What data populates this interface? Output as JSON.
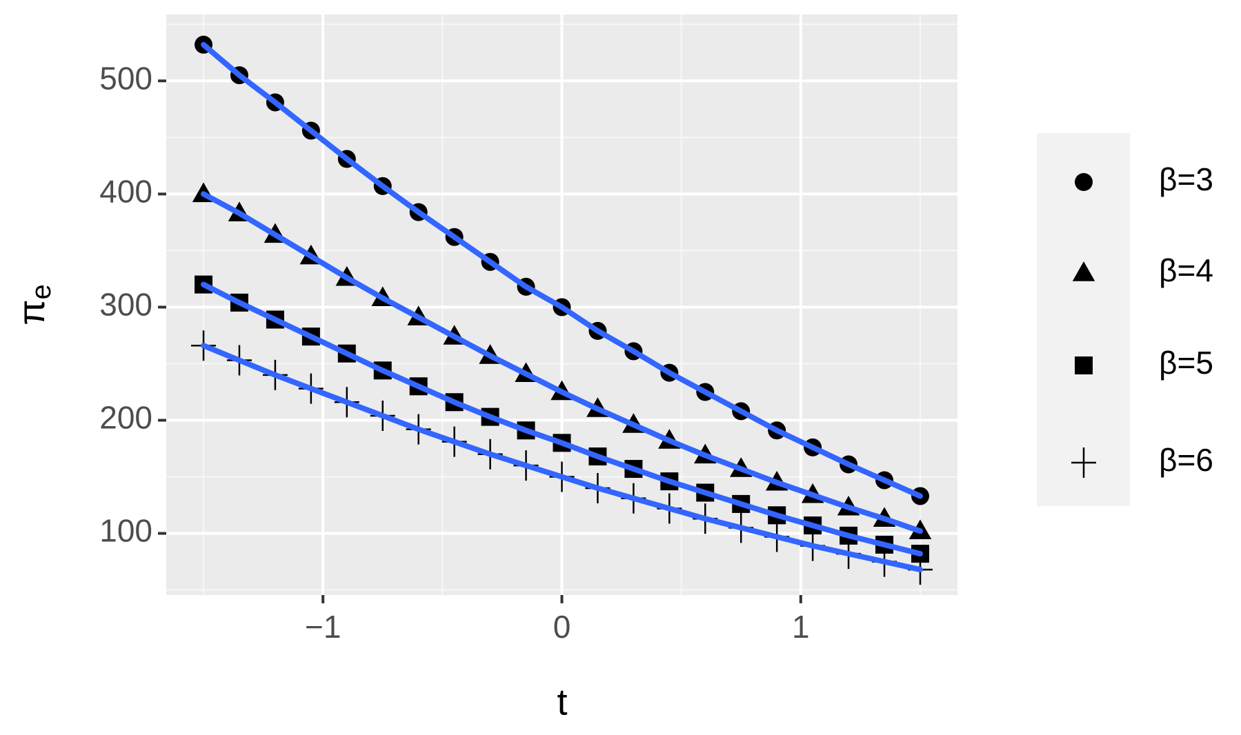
{
  "chart_data": {
    "type": "scatter",
    "xlabel": "t",
    "ylabel": "π",
    "ylabel_sub": "e",
    "x": [
      -1.5,
      -1.35,
      -1.2,
      -1.05,
      -0.9,
      -0.75,
      -0.6,
      -0.45,
      -0.3,
      -0.15,
      0,
      0.15,
      0.3,
      0.45,
      0.6,
      0.75,
      0.9,
      1.05,
      1.2,
      1.35,
      1.5
    ],
    "series": [
      {
        "name": "β=3",
        "shape": "circle",
        "color": "#000000",
        "values": [
          532,
          505,
          481,
          456,
          431,
          407,
          384,
          362,
          340,
          318,
          300,
          279,
          261,
          242,
          225,
          208,
          191,
          176,
          161,
          147,
          133
        ]
      },
      {
        "name": "β=4",
        "shape": "triangle",
        "color": "#000000",
        "values": [
          400,
          383,
          364,
          345,
          326,
          308,
          291,
          274,
          257,
          241,
          225,
          210,
          196,
          182,
          169,
          157,
          145,
          134,
          123,
          113,
          102
        ]
      },
      {
        "name": "β=5",
        "shape": "square",
        "color": "#000000",
        "values": [
          320,
          304,
          289,
          274,
          259,
          244,
          230,
          216,
          203,
          191,
          180,
          168,
          157,
          146,
          136,
          126,
          116,
          107,
          98,
          90,
          82
        ]
      },
      {
        "name": "β=6",
        "shape": "plus",
        "color": "#000000",
        "values": [
          266,
          253,
          240,
          228,
          216,
          204,
          192,
          181,
          170,
          160,
          150,
          140,
          131,
          122,
          113,
          105,
          97,
          89,
          82,
          75,
          68
        ]
      }
    ],
    "fit_line_color": "#3366ff",
    "xlim": [
      -1.656,
      1.656
    ],
    "ylim": [
      45.5,
      558.7
    ],
    "xticks": [
      {
        "value": -1,
        "label": "−1"
      },
      0,
      1
    ],
    "yticks": [
      100,
      200,
      300,
      400,
      500
    ],
    "grid": true,
    "legend": "right"
  }
}
